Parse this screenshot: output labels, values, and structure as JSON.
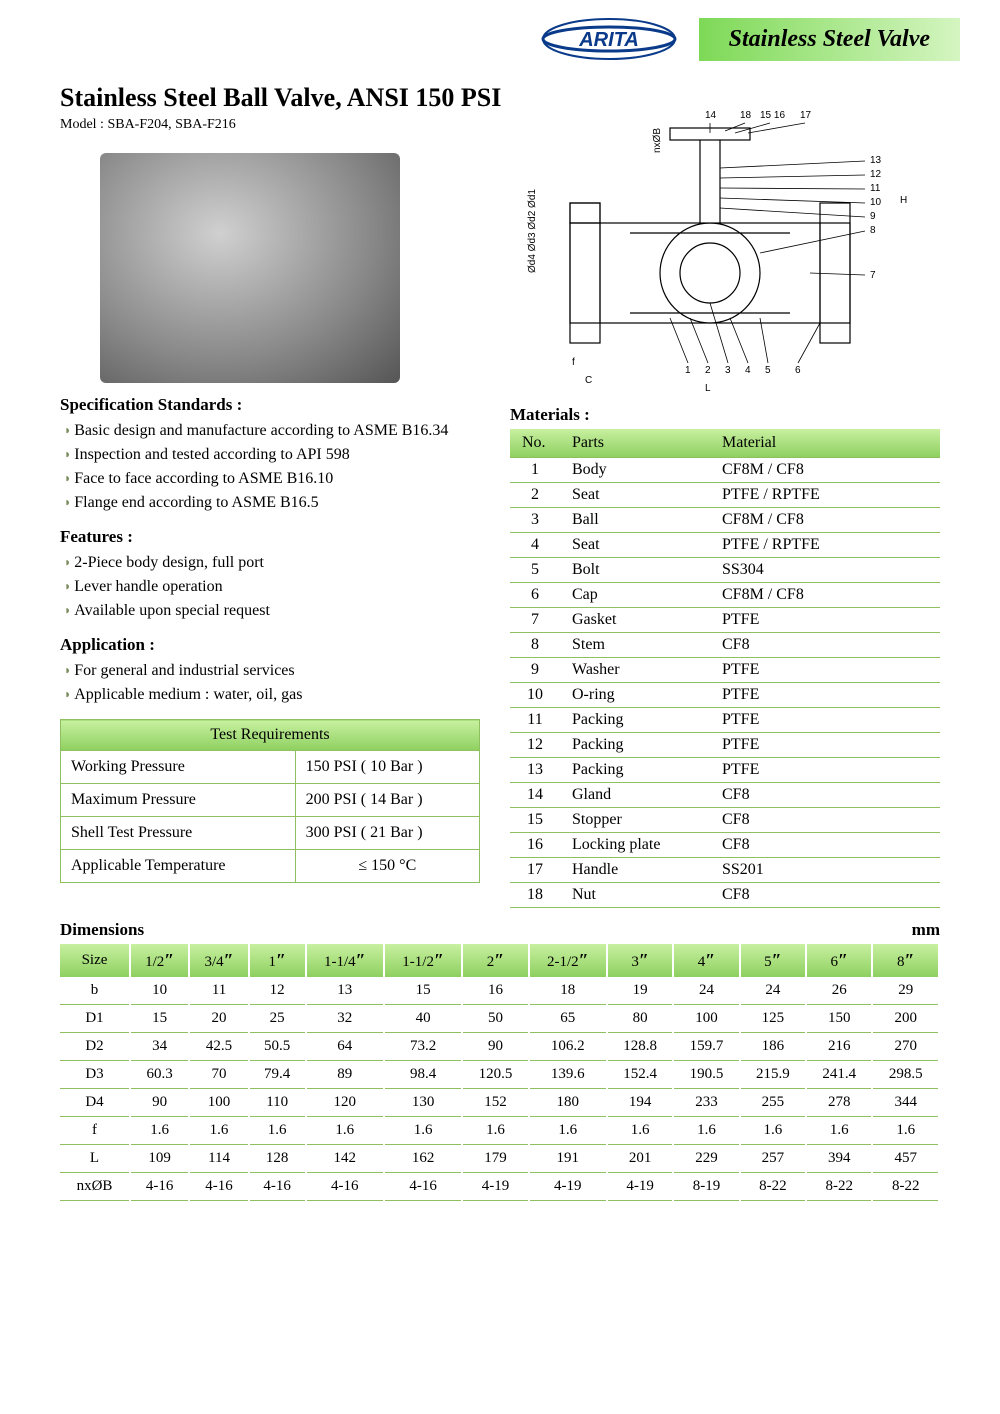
{
  "header": {
    "brand": "ARITA",
    "title": "Stainless Steel Valve"
  },
  "title": "Stainless Steel Ball Valve, ANSI 150 PSI",
  "model": "Model : SBA-F204, SBA-F216",
  "spec_standards": {
    "heading": "Specification Standards :",
    "items": [
      "Basic design and manufacture according to ASME B16.34",
      "Inspection and tested according to API 598",
      "Face to face according to ASME B16.10",
      "Flange end according to ASME B16.5"
    ]
  },
  "features": {
    "heading": "Features :",
    "items": [
      "2-Piece body design, full port",
      "Lever handle operation",
      "Available upon special request"
    ]
  },
  "application": {
    "heading": "Application :",
    "items": [
      "For general and industrial services",
      "Applicable medium : water, oil, gas"
    ]
  },
  "test_requirements": {
    "heading": "Test  Requirements",
    "rows": [
      {
        "label": "Working Pressure",
        "value": "150 PSI ( 10 Bar )"
      },
      {
        "label": "Maximum Pressure",
        "value": "200 PSI ( 14 Bar )"
      },
      {
        "label": "Shell Test Pressure",
        "value": "300 PSI ( 21 Bar )"
      },
      {
        "label": "Applicable Temperature",
        "value": "≤ 150 °C"
      }
    ]
  },
  "materials": {
    "heading": "Materials :",
    "columns": [
      "No.",
      "Parts",
      "Material"
    ],
    "rows": [
      [
        "1",
        "Body",
        "CF8M / CF8"
      ],
      [
        "2",
        "Seat",
        "PTFE / RPTFE"
      ],
      [
        "3",
        "Ball",
        "CF8M / CF8"
      ],
      [
        "4",
        "Seat",
        "PTFE / RPTFE"
      ],
      [
        "5",
        "Bolt",
        "SS304"
      ],
      [
        "6",
        "Cap",
        "CF8M / CF8"
      ],
      [
        "7",
        "Gasket",
        "PTFE"
      ],
      [
        "8",
        "Stem",
        "CF8"
      ],
      [
        "9",
        "Washer",
        "PTFE"
      ],
      [
        "10",
        "O-ring",
        "PTFE"
      ],
      [
        "11",
        "Packing",
        "PTFE"
      ],
      [
        "12",
        "Packing",
        "PTFE"
      ],
      [
        "13",
        "Packing",
        "PTFE"
      ],
      [
        "14",
        "Gland",
        "CF8"
      ],
      [
        "15",
        "Stopper",
        "CF8"
      ],
      [
        "16",
        "Locking plate",
        "CF8"
      ],
      [
        "17",
        "Handle",
        "SS201"
      ],
      [
        "18",
        "Nut",
        "CF8"
      ]
    ]
  },
  "dimensions": {
    "heading": "Dimensions",
    "unit": "mm",
    "sizes": [
      "1/2″",
      "3/4″",
      "1″",
      "1-1/4″",
      "1-1/2″",
      "2″",
      "2-1/2″",
      "3″",
      "4″",
      "5″",
      "6″",
      "8″"
    ],
    "rows": [
      {
        "label": "b",
        "values": [
          "10",
          "11",
          "12",
          "13",
          "15",
          "16",
          "18",
          "19",
          "24",
          "24",
          "26",
          "29"
        ]
      },
      {
        "label": "D1",
        "values": [
          "15",
          "20",
          "25",
          "32",
          "40",
          "50",
          "65",
          "80",
          "100",
          "125",
          "150",
          "200"
        ]
      },
      {
        "label": "D2",
        "values": [
          "34",
          "42.5",
          "50.5",
          "64",
          "73.2",
          "90",
          "106.2",
          "128.8",
          "159.7",
          "186",
          "216",
          "270"
        ]
      },
      {
        "label": "D3",
        "values": [
          "60.3",
          "70",
          "79.4",
          "89",
          "98.4",
          "120.5",
          "139.6",
          "152.4",
          "190.5",
          "215.9",
          "241.4",
          "298.5"
        ]
      },
      {
        "label": "D4",
        "values": [
          "90",
          "100",
          "110",
          "120",
          "130",
          "152",
          "180",
          "194",
          "233",
          "255",
          "278",
          "344"
        ]
      },
      {
        "label": "f",
        "values": [
          "1.6",
          "1.6",
          "1.6",
          "1.6",
          "1.6",
          "1.6",
          "1.6",
          "1.6",
          "1.6",
          "1.6",
          "1.6",
          "1.6"
        ]
      },
      {
        "label": "L",
        "values": [
          "109",
          "114",
          "128",
          "142",
          "162",
          "179",
          "191",
          "201",
          "229",
          "257",
          "394",
          "457"
        ]
      },
      {
        "label": "nxØB",
        "values": [
          "4-16",
          "4-16",
          "4-16",
          "4-16",
          "4-16",
          "4-19",
          "4-19",
          "4-19",
          "8-19",
          "8-22",
          "8-22",
          "8-22"
        ]
      }
    ]
  },
  "colors": {
    "accent_green_light": "#c8f0a0",
    "accent_green_dark": "#8ed060",
    "border_green": "#8ec060",
    "logo_blue": "#0a3a8a"
  }
}
